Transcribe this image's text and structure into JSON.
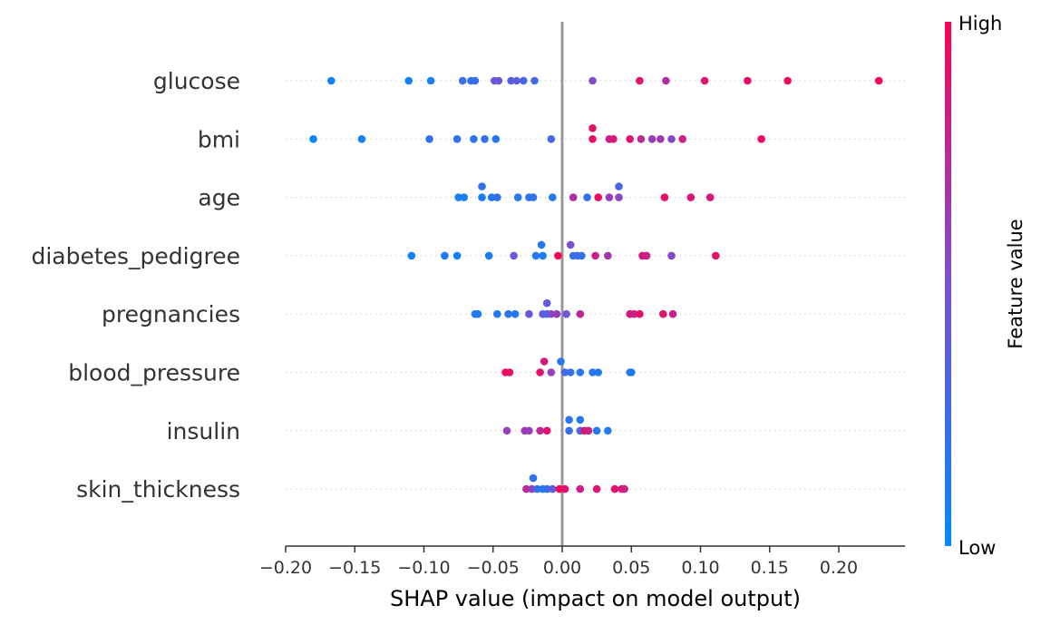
{
  "chart_data": {
    "type": "scatter",
    "subtype": "shap-beeswarm",
    "xlabel": "SHAP value (impact on model output)",
    "xlim": [
      -0.2,
      0.25
    ],
    "xticks": [
      -0.2,
      -0.15,
      -0.1,
      -0.05,
      0.0,
      0.05,
      0.1,
      0.15,
      0.2
    ],
    "xtick_labels": [
      "−0.20",
      "−0.15",
      "−0.10",
      "−0.05",
      "0.00",
      "0.05",
      "0.10",
      "0.15",
      "0.20"
    ],
    "colorbar": {
      "label": "Feature value",
      "high_label": "High",
      "low_label": "Low",
      "low_color": "#008afb",
      "high_color": "#ff0052"
    },
    "features": [
      {
        "name": "glucose",
        "points": [
          {
            "x": -0.167,
            "v": 0.05,
            "j": 0
          },
          {
            "x": -0.111,
            "v": 0.06,
            "j": 0
          },
          {
            "x": -0.095,
            "v": 0.1,
            "j": 0
          },
          {
            "x": -0.072,
            "v": 0.25,
            "j": 0
          },
          {
            "x": -0.066,
            "v": 0.2,
            "j": 0
          },
          {
            "x": -0.063,
            "v": 0.22,
            "j": 0
          },
          {
            "x": -0.049,
            "v": 0.4,
            "j": 0
          },
          {
            "x": -0.046,
            "v": 0.45,
            "j": 0
          },
          {
            "x": -0.037,
            "v": 0.35,
            "j": 0
          },
          {
            "x": -0.033,
            "v": 0.4,
            "j": 0
          },
          {
            "x": -0.028,
            "v": 0.3,
            "j": 0
          },
          {
            "x": -0.02,
            "v": 0.28,
            "j": 0
          },
          {
            "x": 0.022,
            "v": 0.55,
            "j": 0
          },
          {
            "x": 0.056,
            "v": 0.9,
            "j": 0
          },
          {
            "x": 0.075,
            "v": 0.7,
            "j": 0
          },
          {
            "x": 0.103,
            "v": 0.88,
            "j": 0
          },
          {
            "x": 0.134,
            "v": 0.92,
            "j": 0
          },
          {
            "x": 0.163,
            "v": 0.95,
            "j": 0
          },
          {
            "x": 0.229,
            "v": 0.97,
            "j": 0
          }
        ]
      },
      {
        "name": "bmi",
        "points": [
          {
            "x": -0.18,
            "v": 0.05,
            "j": 0
          },
          {
            "x": -0.145,
            "v": 0.06,
            "j": 0
          },
          {
            "x": -0.096,
            "v": 0.2,
            "j": 0
          },
          {
            "x": -0.076,
            "v": 0.2,
            "j": 0
          },
          {
            "x": -0.064,
            "v": 0.18,
            "j": 0
          },
          {
            "x": -0.056,
            "v": 0.2,
            "j": 0
          },
          {
            "x": -0.048,
            "v": 0.15,
            "j": 0
          },
          {
            "x": -0.008,
            "v": 0.3,
            "j": 0
          },
          {
            "x": 0.022,
            "v": 0.9,
            "j": 1
          },
          {
            "x": 0.022,
            "v": 0.92,
            "j": 0
          },
          {
            "x": 0.034,
            "v": 0.8,
            "j": 0
          },
          {
            "x": 0.037,
            "v": 0.85,
            "j": 0
          },
          {
            "x": 0.049,
            "v": 0.88,
            "j": 0
          },
          {
            "x": 0.057,
            "v": 0.75,
            "j": 0
          },
          {
            "x": 0.065,
            "v": 0.6,
            "j": 0
          },
          {
            "x": 0.071,
            "v": 0.65,
            "j": 0
          },
          {
            "x": 0.079,
            "v": 0.55,
            "j": 0
          },
          {
            "x": 0.087,
            "v": 0.8,
            "j": 0
          },
          {
            "x": 0.144,
            "v": 0.93,
            "j": 0
          }
        ]
      },
      {
        "name": "age",
        "points": [
          {
            "x": -0.058,
            "v": 0.2,
            "j": 1
          },
          {
            "x": -0.075,
            "v": 0.1,
            "j": 0
          },
          {
            "x": -0.071,
            "v": 0.12,
            "j": 0
          },
          {
            "x": -0.058,
            "v": 0.1,
            "j": 0
          },
          {
            "x": -0.051,
            "v": 0.15,
            "j": 0
          },
          {
            "x": -0.047,
            "v": 0.2,
            "j": 0
          },
          {
            "x": -0.032,
            "v": 0.15,
            "j": 0
          },
          {
            "x": -0.024,
            "v": 0.18,
            "j": 0
          },
          {
            "x": -0.021,
            "v": 0.2,
            "j": 0
          },
          {
            "x": -0.007,
            "v": 0.15,
            "j": 0
          },
          {
            "x": 0.008,
            "v": 0.7,
            "j": 0
          },
          {
            "x": 0.018,
            "v": 0.2,
            "j": 0
          },
          {
            "x": 0.026,
            "v": 0.92,
            "j": 0
          },
          {
            "x": 0.034,
            "v": 0.6,
            "j": 0
          },
          {
            "x": 0.041,
            "v": 0.55,
            "j": 0
          },
          {
            "x": 0.041,
            "v": 0.3,
            "j": 1
          },
          {
            "x": 0.074,
            "v": 0.92,
            "j": 0
          },
          {
            "x": 0.093,
            "v": 0.85,
            "j": 0
          },
          {
            "x": 0.107,
            "v": 0.85,
            "j": 0
          }
        ]
      },
      {
        "name": "diabetes_pedigree",
        "points": [
          {
            "x": -0.015,
            "v": 0.15,
            "j": 1
          },
          {
            "x": 0.006,
            "v": 0.5,
            "j": 1
          },
          {
            "x": -0.109,
            "v": 0.08,
            "j": 0
          },
          {
            "x": -0.085,
            "v": 0.12,
            "j": 0
          },
          {
            "x": -0.076,
            "v": 0.1,
            "j": 0
          },
          {
            "x": -0.053,
            "v": 0.12,
            "j": 0
          },
          {
            "x": -0.035,
            "v": 0.45,
            "j": 0
          },
          {
            "x": -0.019,
            "v": 0.15,
            "j": 0
          },
          {
            "x": -0.014,
            "v": 0.12,
            "j": 0
          },
          {
            "x": -0.003,
            "v": 0.97,
            "j": 0
          },
          {
            "x": 0.008,
            "v": 0.2,
            "j": 0
          },
          {
            "x": 0.011,
            "v": 0.3,
            "j": 0
          },
          {
            "x": 0.014,
            "v": 0.2,
            "j": 0
          },
          {
            "x": 0.024,
            "v": 0.8,
            "j": 0
          },
          {
            "x": 0.033,
            "v": 0.65,
            "j": 0
          },
          {
            "x": 0.058,
            "v": 0.85,
            "j": 0
          },
          {
            "x": 0.061,
            "v": 0.8,
            "j": 0
          },
          {
            "x": 0.079,
            "v": 0.55,
            "j": 0
          },
          {
            "x": 0.111,
            "v": 0.9,
            "j": 0
          }
        ]
      },
      {
        "name": "pregnancies",
        "points": [
          {
            "x": -0.011,
            "v": 0.4,
            "j": 1
          },
          {
            "x": -0.063,
            "v": 0.15,
            "j": 0
          },
          {
            "x": -0.061,
            "v": 0.12,
            "j": 0
          },
          {
            "x": -0.047,
            "v": 0.15,
            "j": 0
          },
          {
            "x": -0.039,
            "v": 0.2,
            "j": 0
          },
          {
            "x": -0.034,
            "v": 0.15,
            "j": 0
          },
          {
            "x": -0.024,
            "v": 0.45,
            "j": 0
          },
          {
            "x": -0.014,
            "v": 0.4,
            "j": 0
          },
          {
            "x": -0.011,
            "v": 0.3,
            "j": 0
          },
          {
            "x": -0.008,
            "v": 0.55,
            "j": 0
          },
          {
            "x": -0.004,
            "v": 0.6,
            "j": 0
          },
          {
            "x": 0.003,
            "v": 0.45,
            "j": 0
          },
          {
            "x": 0.013,
            "v": 0.75,
            "j": 0
          },
          {
            "x": 0.049,
            "v": 0.85,
            "j": 0
          },
          {
            "x": 0.052,
            "v": 0.8,
            "j": 0
          },
          {
            "x": 0.056,
            "v": 0.9,
            "j": 0
          },
          {
            "x": 0.073,
            "v": 0.9,
            "j": 0
          },
          {
            "x": 0.08,
            "v": 0.8,
            "j": 0
          }
        ]
      },
      {
        "name": "blood_pressure",
        "points": [
          {
            "x": -0.013,
            "v": 0.85,
            "j": 1
          },
          {
            "x": -0.001,
            "v": 0.15,
            "j": 1
          },
          {
            "x": -0.041,
            "v": 0.95,
            "j": 0
          },
          {
            "x": -0.038,
            "v": 0.9,
            "j": 0
          },
          {
            "x": -0.016,
            "v": 0.9,
            "j": 0
          },
          {
            "x": -0.008,
            "v": 0.6,
            "j": 0
          },
          {
            "x": 0.002,
            "v": 0.3,
            "j": 0
          },
          {
            "x": 0.006,
            "v": 0.2,
            "j": 0
          },
          {
            "x": 0.013,
            "v": 0.15,
            "j": 0
          },
          {
            "x": 0.022,
            "v": 0.15,
            "j": 0
          },
          {
            "x": 0.026,
            "v": 0.12,
            "j": 0
          },
          {
            "x": 0.049,
            "v": 0.15,
            "j": 0
          },
          {
            "x": 0.05,
            "v": 0.12,
            "j": 0
          }
        ]
      },
      {
        "name": "insulin",
        "points": [
          {
            "x": 0.005,
            "v": 0.15,
            "j": 1
          },
          {
            "x": 0.013,
            "v": 0.15,
            "j": 1
          },
          {
            "x": -0.04,
            "v": 0.6,
            "j": 0
          },
          {
            "x": -0.027,
            "v": 0.65,
            "j": 0
          },
          {
            "x": -0.024,
            "v": 0.6,
            "j": 0
          },
          {
            "x": -0.016,
            "v": 0.75,
            "j": 0
          },
          {
            "x": -0.011,
            "v": 0.9,
            "j": 0
          },
          {
            "x": 0.005,
            "v": 0.2,
            "j": 0
          },
          {
            "x": 0.013,
            "v": 0.3,
            "j": 0
          },
          {
            "x": 0.016,
            "v": 0.85,
            "j": 0
          },
          {
            "x": 0.019,
            "v": 0.8,
            "j": 0
          },
          {
            "x": 0.025,
            "v": 0.15,
            "j": 0
          },
          {
            "x": 0.033,
            "v": 0.12,
            "j": 0
          }
        ]
      },
      {
        "name": "skin_thickness",
        "points": [
          {
            "x": -0.021,
            "v": 0.2,
            "j": 1
          },
          {
            "x": -0.026,
            "v": 0.75,
            "j": 0
          },
          {
            "x": -0.022,
            "v": 0.6,
            "j": 0
          },
          {
            "x": -0.018,
            "v": 0.2,
            "j": 0
          },
          {
            "x": -0.014,
            "v": 0.15,
            "j": 0
          },
          {
            "x": -0.011,
            "v": 0.2,
            "j": 0
          },
          {
            "x": -0.007,
            "v": 0.4,
            "j": 0
          },
          {
            "x": -0.002,
            "v": 0.95,
            "j": 0
          },
          {
            "x": 0.002,
            "v": 0.9,
            "j": 0
          },
          {
            "x": 0.013,
            "v": 0.8,
            "j": 0
          },
          {
            "x": 0.025,
            "v": 0.88,
            "j": 0
          },
          {
            "x": 0.038,
            "v": 0.9,
            "j": 0
          },
          {
            "x": 0.043,
            "v": 0.85,
            "j": 0
          },
          {
            "x": 0.045,
            "v": 0.8,
            "j": 0
          }
        ]
      }
    ]
  }
}
